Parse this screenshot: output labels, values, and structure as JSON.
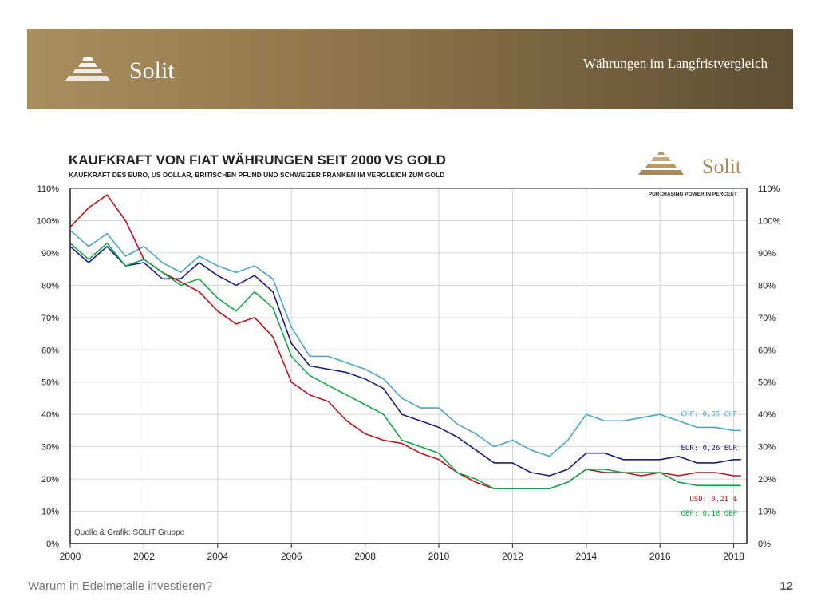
{
  "header": {
    "brand": "Solit",
    "title": "Währungen im Langfristvergleich"
  },
  "footer": {
    "text": "Warum in Edelmetalle investieren?",
    "page_number": "12"
  },
  "colors": {
    "header_gold": "#8c7448",
    "chf": "#4aa7c9",
    "eur": "#1a1a8c",
    "usd": "#c0141c",
    "gbp": "#15a84a"
  },
  "chart_data": {
    "type": "line",
    "title": "KAUFKRAFT VON FIAT WÄHRUNGEN SEIT 2000 VS GOLD",
    "subtitle": "KAUFKRAFT DES EURO, US DOLLAR, BRITISCHEN PFUND UND SCHWEIZER FRANKEN IM VERGLEICH ZUM GOLD",
    "unit_note": "PURCHASING POWER IN PERCENT",
    "logo_text": "Solit",
    "source": "Quelle & Grafik: SOLIT Gruppe",
    "x_ticks": [
      "2000",
      "2002",
      "2004",
      "2006",
      "2008",
      "2010",
      "2012",
      "2014",
      "2016",
      "2018"
    ],
    "y_ticks": [
      "0%",
      "10%",
      "20%",
      "30%",
      "40%",
      "50%",
      "60%",
      "70%",
      "80%",
      "90%",
      "100%",
      "110%"
    ],
    "xlim": [
      2000,
      2018.3
    ],
    "ylim": [
      0,
      110
    ],
    "grid": true,
    "series": [
      {
        "name": "CHF",
        "label": "CHF: 0,35 CHF",
        "color": "#4aa7c9",
        "x": [
          2000,
          2000.5,
          2001,
          2001.5,
          2002,
          2002.5,
          2003,
          2003.5,
          2004,
          2004.5,
          2005,
          2005.5,
          2006,
          2006.5,
          2007,
          2007.5,
          2008,
          2008.5,
          2009,
          2009.5,
          2010,
          2010.5,
          2011,
          2011.5,
          2012,
          2012.5,
          2013,
          2013.5,
          2014,
          2014.5,
          2015,
          2015.5,
          2016,
          2016.5,
          2017,
          2017.5,
          2018,
          2018.2
        ],
        "y": [
          97,
          92,
          96,
          89,
          92,
          87,
          84,
          89,
          86,
          84,
          86,
          82,
          67,
          58,
          58,
          56,
          54,
          51,
          45,
          42,
          42,
          37,
          34,
          30,
          32,
          29,
          27,
          32,
          40,
          38,
          38,
          39,
          40,
          38,
          36,
          36,
          35,
          35
        ]
      },
      {
        "name": "EUR",
        "label": "EUR: 0,26 EUR",
        "color": "#1a1a8c",
        "x": [
          2000,
          2000.5,
          2001,
          2001.5,
          2002,
          2002.5,
          2003,
          2003.5,
          2004,
          2004.5,
          2005,
          2005.5,
          2006,
          2006.5,
          2007,
          2007.5,
          2008,
          2008.5,
          2009,
          2009.5,
          2010,
          2010.5,
          2011,
          2011.5,
          2012,
          2012.5,
          2013,
          2013.5,
          2014,
          2014.5,
          2015,
          2015.5,
          2016,
          2016.5,
          2017,
          2017.5,
          2018,
          2018.2
        ],
        "y": [
          92,
          87,
          92,
          86,
          87,
          82,
          82,
          87,
          83,
          80,
          83,
          78,
          62,
          55,
          54,
          53,
          51,
          48,
          40,
          38,
          36,
          33,
          29,
          25,
          25,
          22,
          21,
          23,
          28,
          28,
          26,
          26,
          26,
          27,
          25,
          25,
          26,
          26
        ]
      },
      {
        "name": "USD",
        "label": "USD: 0,21 $",
        "color": "#c0141c",
        "x": [
          2000,
          2000.5,
          2001,
          2001.5,
          2002,
          2002.5,
          2003,
          2003.5,
          2004,
          2004.5,
          2005,
          2005.5,
          2006,
          2006.5,
          2007,
          2007.5,
          2008,
          2008.5,
          2009,
          2009.5,
          2010,
          2010.5,
          2011,
          2011.5,
          2012,
          2012.5,
          2013,
          2013.5,
          2014,
          2014.5,
          2015,
          2015.5,
          2016,
          2016.5,
          2017,
          2017.5,
          2018,
          2018.2
        ],
        "y": [
          98,
          104,
          108,
          100,
          88,
          84,
          81,
          78,
          72,
          68,
          70,
          64,
          50,
          46,
          44,
          38,
          34,
          32,
          31,
          28,
          26,
          22,
          19,
          17,
          17,
          17,
          17,
          19,
          23,
          22,
          22,
          21,
          22,
          21,
          22,
          22,
          21,
          21
        ]
      },
      {
        "name": "GBP",
        "label": "GBP: 0,18 GBP",
        "color": "#15a84a",
        "x": [
          2000,
          2000.5,
          2001,
          2001.5,
          2002,
          2002.5,
          2003,
          2003.5,
          2004,
          2004.5,
          2005,
          2005.5,
          2006,
          2006.5,
          2007,
          2007.5,
          2008,
          2008.5,
          2009,
          2009.5,
          2010,
          2010.5,
          2011,
          2011.5,
          2012,
          2012.5,
          2013,
          2013.5,
          2014,
          2014.5,
          2015,
          2015.5,
          2016,
          2016.5,
          2017,
          2017.5,
          2018,
          2018.2
        ],
        "y": [
          93,
          88,
          93,
          86,
          88,
          84,
          80,
          82,
          76,
          72,
          78,
          73,
          58,
          52,
          49,
          46,
          43,
          40,
          32,
          30,
          28,
          22,
          20,
          17,
          17,
          17,
          17,
          19,
          23,
          23,
          22,
          22,
          22,
          19,
          18,
          18,
          18,
          18
        ]
      }
    ]
  }
}
